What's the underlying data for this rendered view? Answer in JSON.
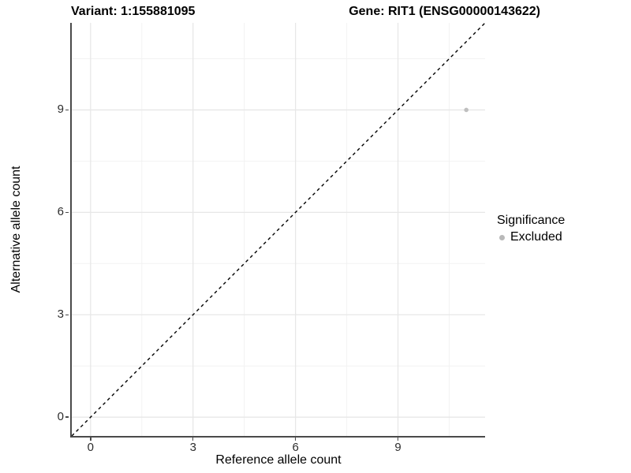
{
  "chart_data": {
    "type": "scatter",
    "title_left": "Variant: 1:155881095",
    "title_right": "Gene: RIT1 (ENSG00000143622)",
    "xlabel": "Reference allele count",
    "ylabel": "Alternative allele count",
    "xlim": [
      -0.55,
      11.55
    ],
    "ylim": [
      -0.55,
      11.55
    ],
    "x_ticks": [
      0,
      3,
      6,
      9
    ],
    "y_ticks": [
      0,
      3,
      6,
      9
    ],
    "x_minor_gridlines": [
      1.5,
      4.5,
      7.5,
      10.5
    ],
    "y_minor_gridlines": [
      1.5,
      4.5,
      7.5,
      10.5
    ],
    "grid": "major+minor",
    "reference_line": {
      "kind": "identity y=x",
      "style": "dashed",
      "color": "#000000"
    },
    "series": [
      {
        "name": "Excluded",
        "color": "#bfbfbf",
        "points": [
          {
            "x": 11,
            "y": 9
          }
        ]
      }
    ],
    "legend": {
      "title": "Significance",
      "position": "right",
      "entries": [
        {
          "label": "Excluded",
          "color": "#b9b9b9"
        }
      ]
    }
  },
  "colors": {
    "background": "#ffffff",
    "grid_major": "#e7e7e7",
    "grid_minor": "#f2f2f2",
    "axis_line": "#4a4a4a",
    "tick_label": "#2e2e2e",
    "title_text": "#000000"
  }
}
